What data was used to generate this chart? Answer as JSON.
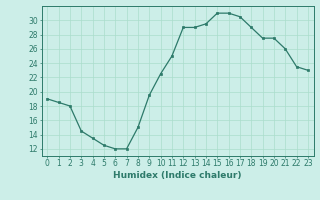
{
  "x": [
    0,
    1,
    2,
    3,
    4,
    5,
    6,
    7,
    8,
    9,
    10,
    11,
    12,
    13,
    14,
    15,
    16,
    17,
    18,
    19,
    20,
    21,
    22,
    23
  ],
  "y": [
    19,
    18.5,
    18,
    14.5,
    13.5,
    12.5,
    12,
    12,
    15,
    19.5,
    22.5,
    25,
    29,
    29,
    29.5,
    31,
    31,
    30.5,
    29,
    27.5,
    27.5,
    26,
    23.5,
    23
  ],
  "line_color": "#2d7a6a",
  "marker": "s",
  "marker_size": 2.0,
  "bg_color": "#cceee8",
  "grid_color": "#aaddcc",
  "xlabel": "Humidex (Indice chaleur)",
  "xlim": [
    -0.5,
    23.5
  ],
  "ylim": [
    11,
    32
  ],
  "yticks": [
    12,
    14,
    16,
    18,
    20,
    22,
    24,
    26,
    28,
    30
  ],
  "xticks": [
    0,
    1,
    2,
    3,
    4,
    5,
    6,
    7,
    8,
    9,
    10,
    11,
    12,
    13,
    14,
    15,
    16,
    17,
    18,
    19,
    20,
    21,
    22,
    23
  ],
  "tick_label_size": 5.5,
  "xlabel_size": 6.5
}
